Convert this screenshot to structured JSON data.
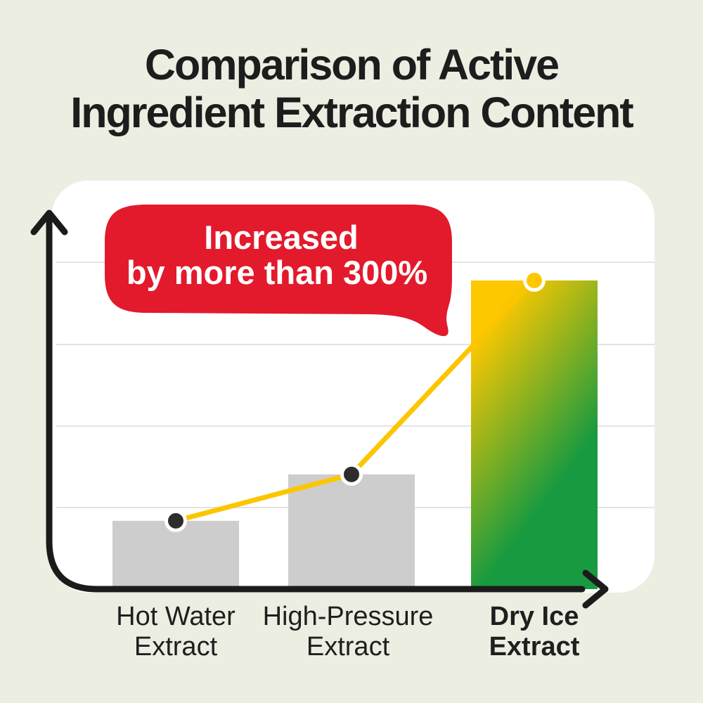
{
  "page": {
    "background_color": "#edeee2",
    "title_line1": "Comparison of Active",
    "title_line2": "Ingredient Extraction Content"
  },
  "annotation": {
    "line1": "Increased",
    "line2": "by more than 300%",
    "bubble_color": "#e21a2c",
    "text_color": "#ffffff"
  },
  "chart_data": {
    "type": "bar",
    "title": "Comparison of Active Ingredient Extraction Content",
    "categories": [
      "Hot Water\nExtract",
      "High-Pressure\nExtract",
      "Dry Ice\nExtract"
    ],
    "category_ids": [
      "hot-water-extract",
      "high-pressure-extract",
      "dry-ice-extract"
    ],
    "values_relative": [
      100,
      168,
      452
    ],
    "values_unit": "relative (no numeric axis labels shown in image)",
    "annotation": "Increased by more than 300%",
    "has_trendline": true,
    "gridlines": true,
    "axis_tick_labels": "none",
    "colors": {
      "gray_bar": "#cdcdcd",
      "gradient_top": "#fec800",
      "gradient_bottom": "#189a40",
      "trendline": "#fdc500",
      "dot_dark": "#2d2d2d",
      "dot_gold": "#fdc800",
      "axis": "#1b1b1b",
      "gridline": "#e3e3e3"
    }
  }
}
